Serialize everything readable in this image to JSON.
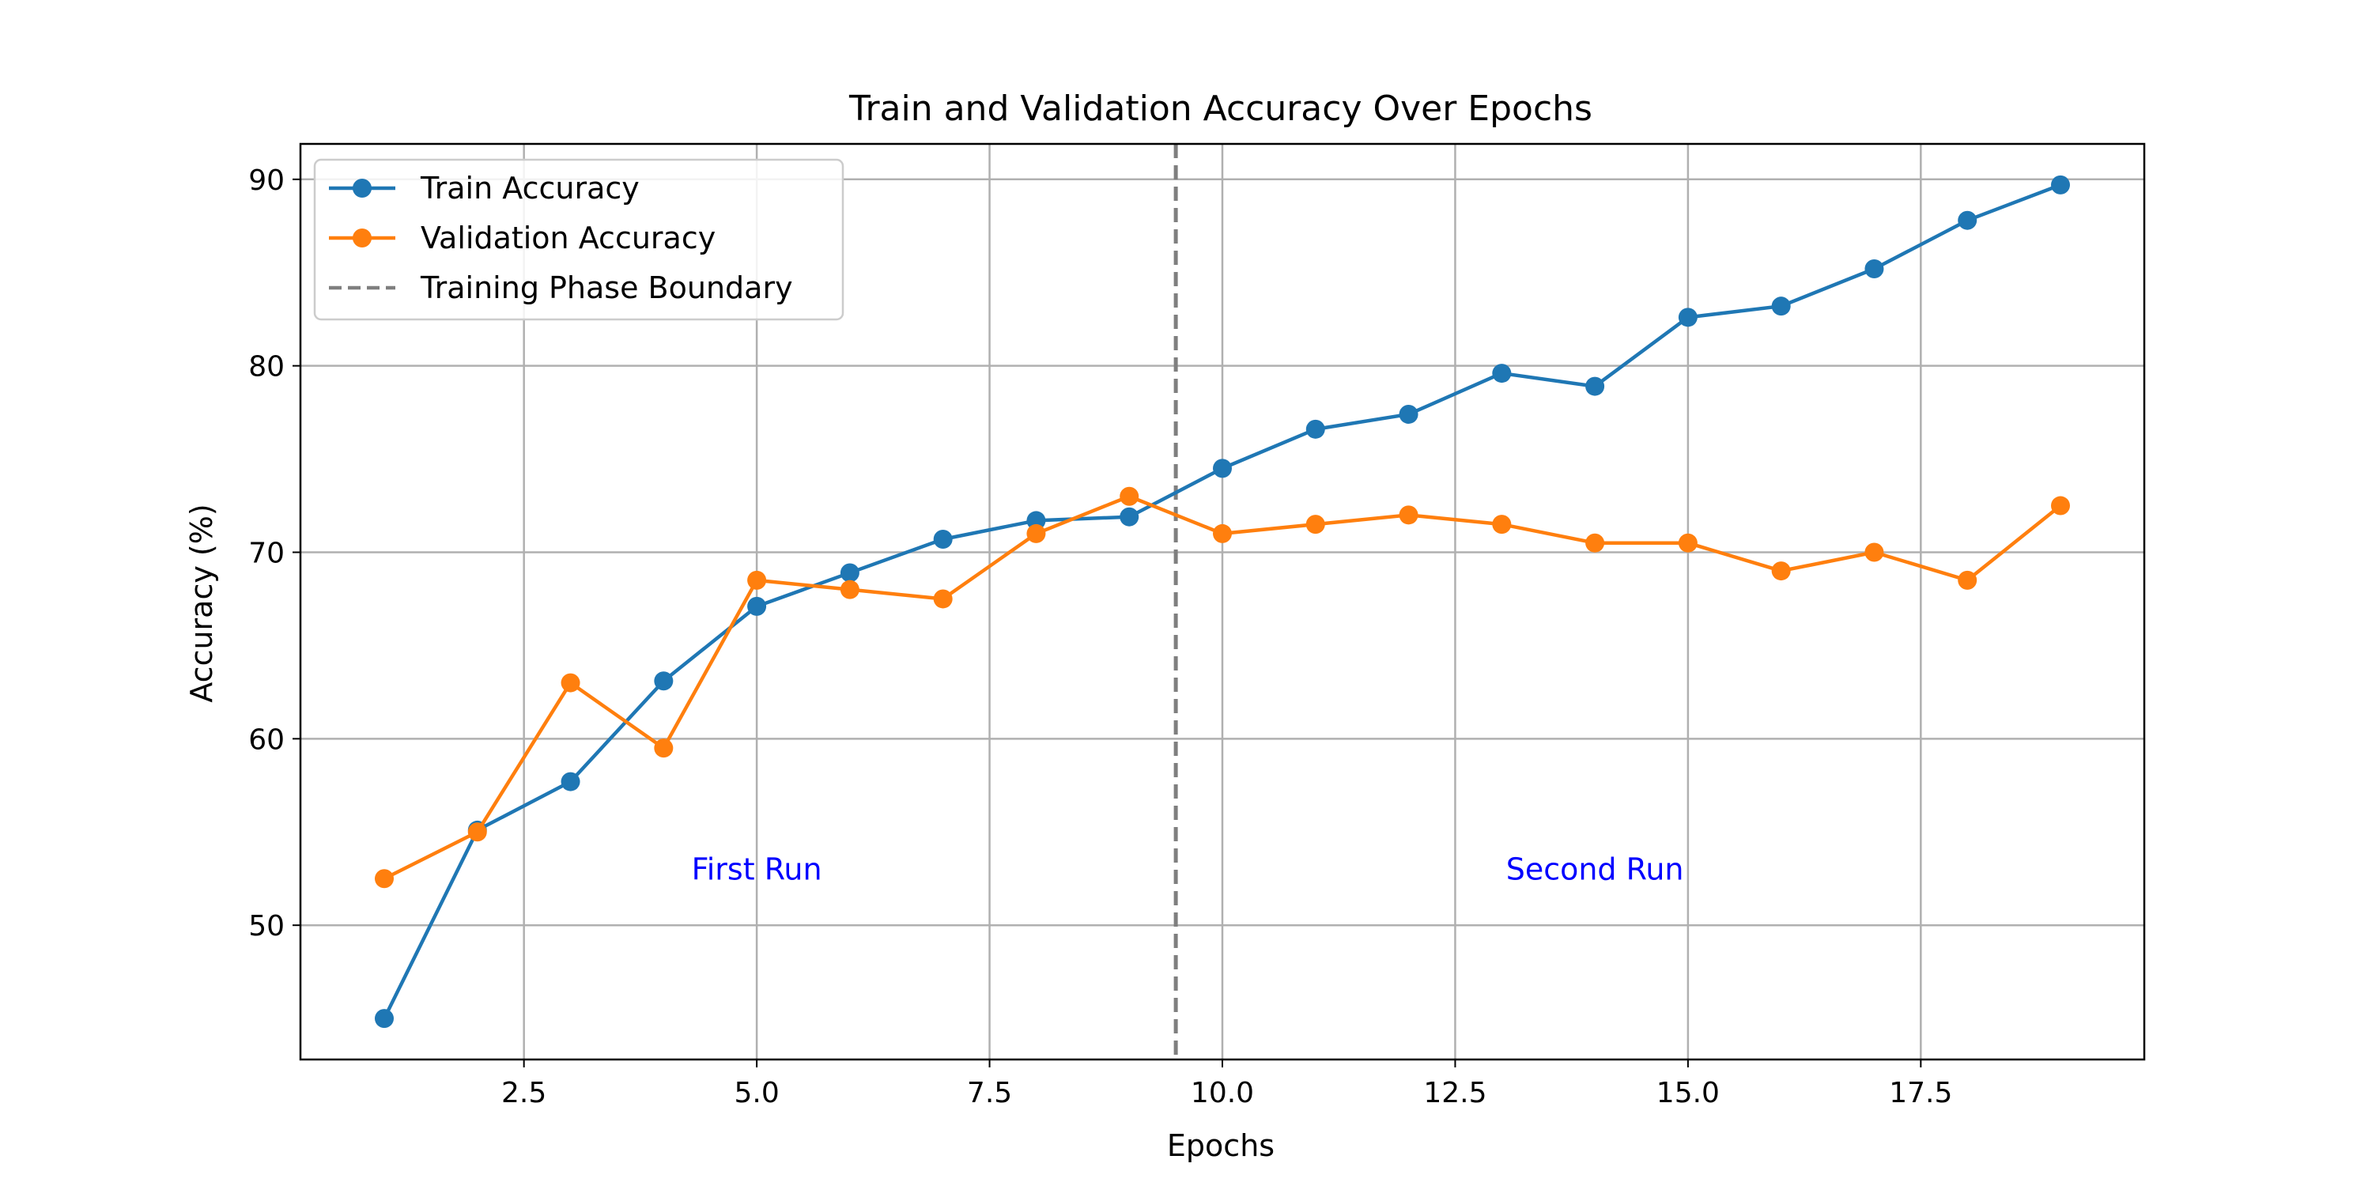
{
  "chart_data": {
    "type": "line",
    "title": "Train and Validation Accuracy Over Epochs",
    "xlabel": "Epochs",
    "ylabel": "Accuracy (%)",
    "xlim": [
      0.1,
      19.9
    ],
    "ylim": [
      42.8,
      91.9
    ],
    "x_ticks": [
      2.5,
      5.0,
      7.5,
      10.0,
      12.5,
      15.0,
      17.5
    ],
    "x_tick_labels": [
      "2.5",
      "5.0",
      "7.5",
      "10.0",
      "12.5",
      "15.0",
      "17.5"
    ],
    "y_ticks": [
      50,
      60,
      70,
      80,
      90
    ],
    "y_tick_labels": [
      "50",
      "60",
      "70",
      "80",
      "90"
    ],
    "grid": true,
    "legend_position": "top-left",
    "x": [
      1,
      2,
      3,
      4,
      5,
      6,
      7,
      8,
      9,
      10,
      11,
      12,
      13,
      14,
      15,
      16,
      17,
      18,
      19
    ],
    "series": [
      {
        "name": "Train Accuracy",
        "color": "#1f77b4",
        "marker": "circle",
        "values": [
          45.0,
          55.1,
          57.7,
          63.1,
          67.1,
          68.9,
          70.7,
          71.7,
          71.9,
          74.5,
          76.6,
          77.4,
          79.6,
          78.9,
          82.6,
          83.2,
          85.2,
          87.8,
          89.7
        ]
      },
      {
        "name": "Validation Accuracy",
        "color": "#ff7f0e",
        "marker": "circle",
        "values": [
          52.5,
          55.0,
          63.0,
          59.5,
          68.5,
          68.0,
          67.5,
          71.0,
          73.0,
          71.0,
          71.5,
          72.0,
          71.5,
          70.5,
          70.5,
          69.0,
          70.0,
          68.5,
          72.5
        ]
      }
    ],
    "vline": {
      "name": "Training Phase Boundary",
      "x": 9.5,
      "color": "#7f7f7f",
      "style": "dashed"
    },
    "annotations": [
      {
        "text": "First Run",
        "x": 5.0,
        "y": 53,
        "color": "#0000ff"
      },
      {
        "text": "Second Run",
        "x": 14.0,
        "y": 53,
        "color": "#0000ff"
      }
    ]
  }
}
